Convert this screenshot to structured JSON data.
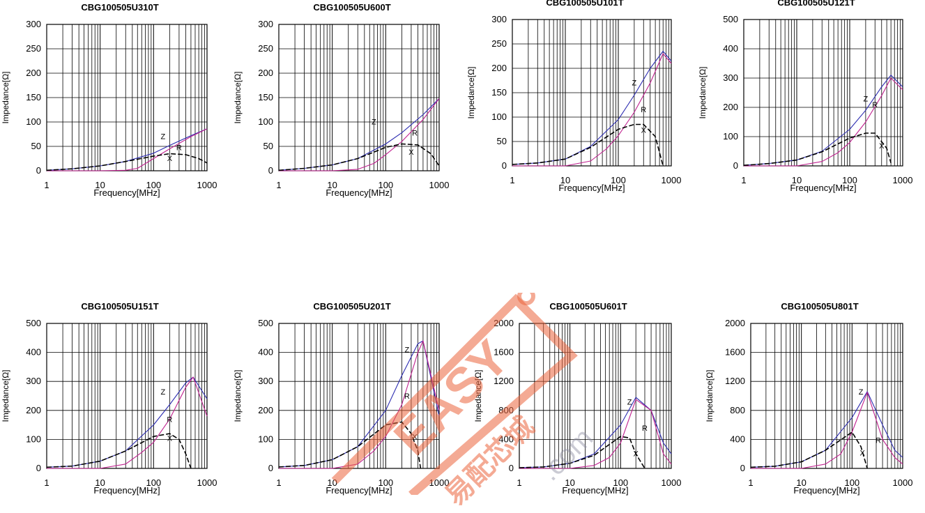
{
  "colors": {
    "z": "#2b2bb0",
    "r": "#c0208f",
    "x": "#000000",
    "grid": "#000000",
    "watermark": "#eb643c"
  },
  "watermark": {
    "brand": "EASY",
    "cn": "易配芯城",
    "url": ".com"
  },
  "chart_data": [
    {
      "type": "line",
      "title": "CBG100505U310T",
      "xlabel": "Frequency[MHz]",
      "ylabel": "Impedance[Ω]",
      "xscale": "log",
      "xlim": [
        1,
        1000
      ],
      "ylim": [
        0,
        300
      ],
      "yticks": [
        0,
        50,
        100,
        150,
        200,
        250,
        300
      ],
      "xticks": [
        "1",
        "10",
        "100",
        "1000"
      ],
      "series": [
        {
          "name": "Z",
          "x": [
            1,
            3,
            10,
            30,
            100,
            200,
            500,
            1000
          ],
          "y": [
            1,
            4,
            10,
            19,
            36,
            52,
            72,
            86
          ]
        },
        {
          "name": "R",
          "x": [
            1,
            10,
            30,
            50,
            100,
            200,
            500,
            1000
          ],
          "y": [
            0,
            0,
            1,
            5,
            25,
            45,
            70,
            86
          ]
        },
        {
          "name": "X",
          "x": [
            1,
            3,
            10,
            30,
            100,
            200,
            400,
            700,
            1000
          ],
          "y": [
            1,
            4,
            10,
            19,
            30,
            35,
            33,
            25,
            16
          ]
        }
      ],
      "labels": [
        {
          "text": "Z",
          "x": 150,
          "y": 65
        },
        {
          "text": "R",
          "x": 300,
          "y": 42
        },
        {
          "text": "X",
          "x": 200,
          "y": 20
        }
      ]
    },
    {
      "type": "line",
      "title": "CBG100505U600T",
      "xlabel": "Frequency[MHz]",
      "ylabel": "Impedance[Ω]",
      "xscale": "log",
      "xlim": [
        1,
        1000
      ],
      "ylim": [
        0,
        300
      ],
      "yticks": [
        0,
        50,
        100,
        150,
        200,
        250,
        300
      ],
      "xticks": [
        "1",
        "10",
        "100",
        "1000"
      ],
      "series": [
        {
          "name": "Z",
          "x": [
            1,
            3,
            10,
            30,
            100,
            200,
            500,
            1000
          ],
          "y": [
            1,
            5,
            12,
            25,
            55,
            78,
            115,
            148
          ]
        },
        {
          "name": "R",
          "x": [
            1,
            10,
            30,
            60,
            100,
            200,
            500,
            1000
          ],
          "y": [
            0,
            0,
            3,
            15,
            33,
            60,
            105,
            148
          ]
        },
        {
          "name": "X",
          "x": [
            1,
            3,
            10,
            30,
            100,
            200,
            400,
            700,
            1000
          ],
          "y": [
            1,
            5,
            12,
            25,
            48,
            55,
            53,
            35,
            10
          ]
        }
      ],
      "labels": [
        {
          "text": "Z",
          "x": 60,
          "y": 95
        },
        {
          "text": "R",
          "x": 350,
          "y": 72
        },
        {
          "text": "X",
          "x": 300,
          "y": 33
        }
      ]
    },
    {
      "type": "line",
      "title": "CBG100505U101T",
      "xlabel": "Frequency[MHz]",
      "ylabel": "Impedance[Ω]",
      "xscale": "log",
      "xlim": [
        1,
        1000
      ],
      "ylim": [
        0,
        300
      ],
      "yticks": [
        0,
        50,
        100,
        150,
        200,
        250,
        300
      ],
      "xticks": [
        "1",
        "10",
        "100",
        "1000"
      ],
      "series": [
        {
          "name": "Z",
          "x": [
            1,
            3,
            10,
            30,
            100,
            200,
            400,
            700,
            1000
          ],
          "y": [
            3,
            6,
            14,
            40,
            95,
            145,
            200,
            235,
            215
          ]
        },
        {
          "name": "R",
          "x": [
            1,
            10,
            30,
            60,
            100,
            200,
            400,
            700,
            1000
          ],
          "y": [
            0,
            0,
            10,
            35,
            62,
            110,
            170,
            230,
            210
          ]
        },
        {
          "name": "X",
          "x": [
            1,
            3,
            10,
            30,
            100,
            200,
            300,
            500,
            700
          ],
          "y": [
            3,
            6,
            14,
            38,
            75,
            85,
            85,
            60,
            0
          ]
        }
      ],
      "labels": [
        {
          "text": "Z",
          "x": 200,
          "y": 165
        },
        {
          "text": "R",
          "x": 300,
          "y": 110
        },
        {
          "text": "X",
          "x": 300,
          "y": 68
        }
      ]
    },
    {
      "type": "line",
      "title": "CBG100505U121T",
      "xlabel": "Frequency[MHz]",
      "ylabel": "Impedance[Ω]",
      "xscale": "log",
      "xlim": [
        1,
        1000
      ],
      "ylim": [
        0,
        500
      ],
      "yticks": [
        0,
        100,
        200,
        300,
        400,
        500
      ],
      "xticks": [
        "1",
        "10",
        "100",
        "1000"
      ],
      "series": [
        {
          "name": "Z",
          "x": [
            1,
            3,
            10,
            30,
            100,
            200,
            400,
            600,
            1000
          ],
          "y": [
            2,
            8,
            20,
            50,
            125,
            190,
            270,
            310,
            270
          ]
        },
        {
          "name": "R",
          "x": [
            1,
            10,
            30,
            60,
            100,
            200,
            400,
            600,
            1000
          ],
          "y": [
            0,
            0,
            15,
            45,
            80,
            150,
            240,
            300,
            260
          ]
        },
        {
          "name": "X",
          "x": [
            1,
            3,
            10,
            30,
            100,
            200,
            300,
            500,
            600
          ],
          "y": [
            2,
            8,
            20,
            48,
            95,
            112,
            112,
            60,
            10
          ]
        }
      ],
      "labels": [
        {
          "text": "Z",
          "x": 200,
          "y": 220
        },
        {
          "text": "R",
          "x": 300,
          "y": 200
        },
        {
          "text": "X",
          "x": 400,
          "y": 60
        }
      ]
    },
    {
      "type": "line",
      "title": "CBG100505U151T",
      "xlabel": "Frequency[MHz]",
      "ylabel": "Impedance[Ω]",
      "xscale": "log",
      "xlim": [
        1,
        1000
      ],
      "ylim": [
        0,
        500
      ],
      "yticks": [
        0,
        100,
        200,
        300,
        400,
        500
      ],
      "xticks": [
        "1",
        "10",
        "100",
        "1000"
      ],
      "series": [
        {
          "name": "Z",
          "x": [
            1,
            3,
            10,
            30,
            100,
            200,
            400,
            550,
            1000
          ],
          "y": [
            4,
            8,
            25,
            60,
            150,
            220,
            295,
            315,
            240
          ]
        },
        {
          "name": "R",
          "x": [
            1,
            10,
            30,
            60,
            100,
            200,
            400,
            550,
            1000
          ],
          "y": [
            0,
            0,
            15,
            55,
            90,
            170,
            280,
            315,
            180
          ]
        },
        {
          "name": "X",
          "x": [
            1,
            3,
            10,
            30,
            100,
            200,
            300,
            400,
            500
          ],
          "y": [
            4,
            8,
            25,
            60,
            110,
            120,
            100,
            50,
            0
          ]
        }
      ],
      "labels": [
        {
          "text": "Z",
          "x": 150,
          "y": 255
        },
        {
          "text": "R",
          "x": 200,
          "y": 160
        },
        {
          "text": "X",
          "x": 200,
          "y": 95
        }
      ]
    },
    {
      "type": "line",
      "title": "CBG100505U201T",
      "xlabel": "Frequency[MHz]",
      "ylabel": "Impedance[Ω]",
      "xscale": "log",
      "xlim": [
        1,
        1000
      ],
      "ylim": [
        0,
        500
      ],
      "yticks": [
        0,
        100,
        200,
        300,
        400,
        500
      ],
      "xticks": [
        "1",
        "10",
        "100",
        "1000"
      ],
      "series": [
        {
          "name": "Z",
          "x": [
            1,
            3,
            10,
            30,
            100,
            200,
            400,
            500,
            1000
          ],
          "y": [
            5,
            10,
            30,
            75,
            200,
            320,
            430,
            440,
            180
          ]
        },
        {
          "name": "R",
          "x": [
            1,
            10,
            30,
            60,
            100,
            200,
            400,
            500,
            1000
          ],
          "y": [
            0,
            0,
            15,
            60,
            110,
            220,
            400,
            440,
            200
          ]
        },
        {
          "name": "X",
          "x": [
            1,
            3,
            10,
            30,
            100,
            200,
            300,
            400,
            450
          ],
          "y": [
            5,
            10,
            30,
            75,
            150,
            160,
            120,
            60,
            0
          ]
        }
      ],
      "labels": [
        {
          "text": "Z",
          "x": 250,
          "y": 400
        },
        {
          "text": "R",
          "x": 250,
          "y": 240
        },
        {
          "text": "X",
          "x": 350,
          "y": 100
        }
      ]
    },
    {
      "type": "line",
      "title": "CBG100505U601T",
      "xlabel": "Frequency[MHz]",
      "ylabel": "Impedance[Ω]",
      "xscale": "log",
      "xlim": [
        1,
        1000
      ],
      "ylim": [
        0,
        2000
      ],
      "yticks": [
        0,
        400,
        800,
        1200,
        1600,
        2000
      ],
      "xticks": [
        "1",
        "10",
        "100",
        "1000"
      ],
      "series": [
        {
          "name": "Z",
          "x": [
            1,
            3,
            10,
            30,
            100,
            200,
            400,
            700,
            1000
          ],
          "y": [
            10,
            20,
            70,
            200,
            600,
            980,
            800,
            350,
            200
          ]
        },
        {
          "name": "R",
          "x": [
            1,
            10,
            30,
            60,
            100,
            200,
            400,
            700,
            1000
          ],
          "y": [
            0,
            0,
            40,
            150,
            350,
            950,
            800,
            200,
            60
          ]
        },
        {
          "name": "X",
          "x": [
            1,
            3,
            10,
            30,
            100,
            150,
            200,
            300
          ],
          "y": [
            10,
            20,
            70,
            180,
            440,
            420,
            200,
            0
          ]
        }
      ],
      "labels": [
        {
          "text": "Z",
          "x": 150,
          "y": 880
        },
        {
          "text": "R",
          "x": 300,
          "y": 520
        },
        {
          "text": "X",
          "x": 200,
          "y": 170
        }
      ]
    },
    {
      "type": "line",
      "title": "CBG100505U801T",
      "xlabel": "Frequency[MHz]",
      "ylabel": "Impedance[Ω]",
      "xscale": "log",
      "xlim": [
        1,
        1000
      ],
      "ylim": [
        0,
        2000
      ],
      "yticks": [
        0,
        400,
        800,
        1200,
        1600,
        2000
      ],
      "xticks": [
        "1",
        "10",
        "100",
        "1000"
      ],
      "series": [
        {
          "name": "Z",
          "x": [
            1,
            3,
            10,
            30,
            100,
            200,
            400,
            700,
            1000
          ],
          "y": [
            15,
            30,
            90,
            250,
            700,
            1060,
            600,
            250,
            150
          ]
        },
        {
          "name": "R",
          "x": [
            1,
            10,
            30,
            60,
            100,
            200,
            400,
            700,
            1000
          ],
          "y": [
            0,
            0,
            60,
            200,
            500,
            1050,
            400,
            150,
            60
          ]
        },
        {
          "name": "X",
          "x": [
            1,
            3,
            10,
            30,
            100,
            150,
            200
          ],
          "y": [
            15,
            30,
            90,
            250,
            500,
            300,
            0
          ]
        }
      ],
      "labels": [
        {
          "text": "Z",
          "x": 150,
          "y": 1020
        },
        {
          "text": "R",
          "x": 330,
          "y": 350
        },
        {
          "text": "X",
          "x": 160,
          "y": 180
        }
      ]
    }
  ]
}
